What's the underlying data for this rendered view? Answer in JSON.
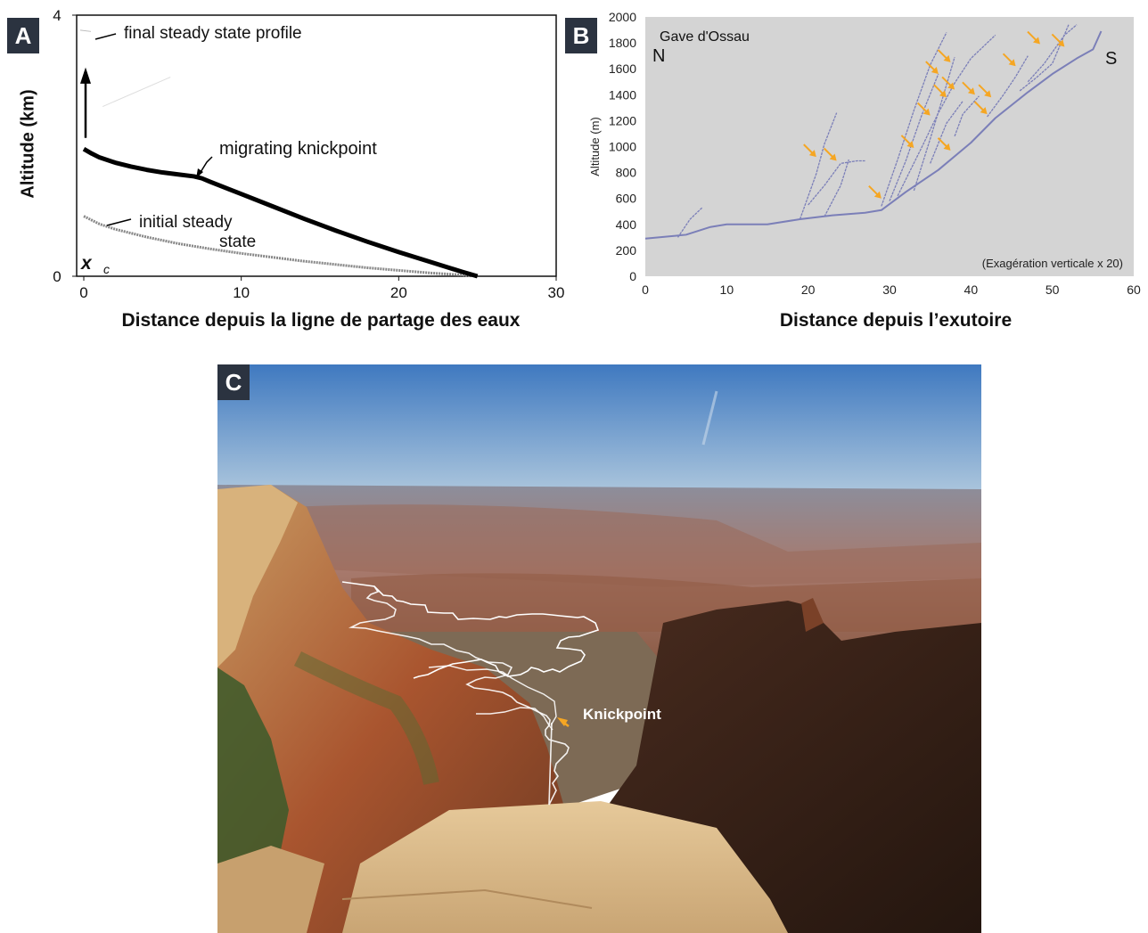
{
  "panel_a": {
    "tag": "A",
    "xlabel": "Distance depuis la ligne de partage des eaux",
    "ylabel": "Altitude (km)",
    "annotations": {
      "final": "final steady state profile",
      "knick": "migrating knickpoint",
      "initial_1": "initial steady",
      "initial_2": "state",
      "xc": "x",
      "xc_sub": "c"
    }
  },
  "panel_b": {
    "tag": "B",
    "xlabel": "Distance depuis l’exutoire",
    "ylabel": "Altitude (m)",
    "title": "Gave d'Ossau",
    "north": "N",
    "south": "S",
    "note": "(Exagération verticale x 20)"
  },
  "panel_c": {
    "tag": "C",
    "label": "Knickpoint"
  },
  "colors": {
    "arrow": "#f5a623",
    "profile": "#7b7fb8",
    "plot_bg": "#d4d4d4",
    "tag_bg": "#2b3340"
  },
  "chart_data": [
    {
      "type": "line",
      "xlabel": "Distance depuis la ligne de partage des eaux",
      "ylabel": "Altitude (km)",
      "xlim": [
        0,
        30
      ],
      "ylim": [
        0,
        4
      ],
      "xticks": [
        0,
        10,
        20,
        30
      ],
      "yticks": [
        0,
        4
      ],
      "series": [
        {
          "name": "migrating knickpoint",
          "x": [
            0,
            0.5,
            1,
            2,
            3,
            4,
            5,
            6,
            7,
            7.5,
            8,
            10,
            12,
            14,
            16,
            18,
            20,
            22,
            24,
            25
          ],
          "y": [
            1.95,
            1.88,
            1.82,
            1.74,
            1.68,
            1.63,
            1.59,
            1.56,
            1.53,
            1.5,
            1.45,
            1.26,
            1.07,
            0.88,
            0.7,
            0.53,
            0.37,
            0.22,
            0.07,
            0.0
          ]
        },
        {
          "name": "initial steady state",
          "x": [
            0,
            1,
            2,
            4,
            6,
            8,
            10,
            12,
            14,
            16,
            18,
            20,
            22,
            24,
            25
          ],
          "y": [
            0.92,
            0.8,
            0.72,
            0.6,
            0.5,
            0.42,
            0.35,
            0.29,
            0.23,
            0.18,
            0.13,
            0.09,
            0.05,
            0.02,
            0.0
          ]
        }
      ]
    },
    {
      "type": "line",
      "title": "Gave d'Ossau",
      "xlabel": "Distance depuis l’exutoire",
      "ylabel": "Altitude (m)",
      "xlim": [
        0,
        60
      ],
      "ylim": [
        0,
        2000
      ],
      "xticks": [
        0,
        10,
        20,
        30,
        40,
        50,
        60
      ],
      "yticks": [
        0,
        200,
        400,
        600,
        800,
        1000,
        1200,
        1400,
        1600,
        1800,
        2000
      ],
      "series": [
        {
          "x": [
            0,
            5,
            8,
            10,
            15,
            19,
            23,
            27,
            29,
            32,
            36,
            40,
            43,
            47,
            50,
            53,
            55,
            56
          ],
          "y": [
            290,
            320,
            380,
            400,
            400,
            440,
            470,
            490,
            510,
            650,
            820,
            1030,
            1220,
            1420,
            1560,
            1680,
            1750,
            1890
          ]
        },
        {
          "x": [
            4,
            5.5,
            7
          ],
          "y": [
            300,
            440,
            530
          ]
        },
        {
          "x": [
            19,
            21,
            22,
            23.5
          ],
          "y": [
            440,
            790,
            1020,
            1260
          ]
        },
        {
          "x": [
            20,
            22,
            24,
            26,
            27
          ],
          "y": [
            550,
            700,
            870,
            890,
            890
          ]
        },
        {
          "x": [
            22,
            24,
            25
          ],
          "y": [
            460,
            700,
            900
          ]
        },
        {
          "x": [
            29,
            31,
            33,
            35,
            37
          ],
          "y": [
            540,
            900,
            1280,
            1630,
            1880
          ]
        },
        {
          "x": [
            30,
            32,
            34,
            36
          ],
          "y": [
            580,
            890,
            1250,
            1560
          ]
        },
        {
          "x": [
            31,
            34,
            36,
            38,
            40,
            43
          ],
          "y": [
            620,
            1000,
            1260,
            1490,
            1680,
            1860
          ]
        },
        {
          "x": [
            33,
            35,
            36.5,
            38
          ],
          "y": [
            660,
            1060,
            1370,
            1690
          ]
        },
        {
          "x": [
            35,
            37,
            39
          ],
          "y": [
            870,
            1180,
            1350
          ]
        },
        {
          "x": [
            38,
            39,
            41
          ],
          "y": [
            1080,
            1250,
            1390
          ]
        },
        {
          "x": [
            42,
            44,
            45.5,
            47
          ],
          "y": [
            1230,
            1400,
            1540,
            1700
          ]
        },
        {
          "x": [
            46,
            48,
            50,
            52
          ],
          "y": [
            1430,
            1530,
            1640,
            1940
          ]
        },
        {
          "x": [
            47,
            49,
            51.5,
            53
          ],
          "y": [
            1500,
            1640,
            1860,
            1940
          ]
        }
      ],
      "knickpoint_arrows": [
        [
          21,
          920
        ],
        [
          23.5,
          890
        ],
        [
          29,
          600
        ],
        [
          33,
          990
        ],
        [
          35,
          1240
        ],
        [
          37.5,
          970
        ],
        [
          36,
          1560
        ],
        [
          37,
          1380
        ],
        [
          38,
          1440
        ],
        [
          37.5,
          1650
        ],
        [
          40.5,
          1400
        ],
        [
          42,
          1250
        ],
        [
          42.5,
          1380
        ],
        [
          45.5,
          1620
        ],
        [
          48.5,
          1790
        ],
        [
          51.5,
          1770
        ]
      ]
    }
  ]
}
